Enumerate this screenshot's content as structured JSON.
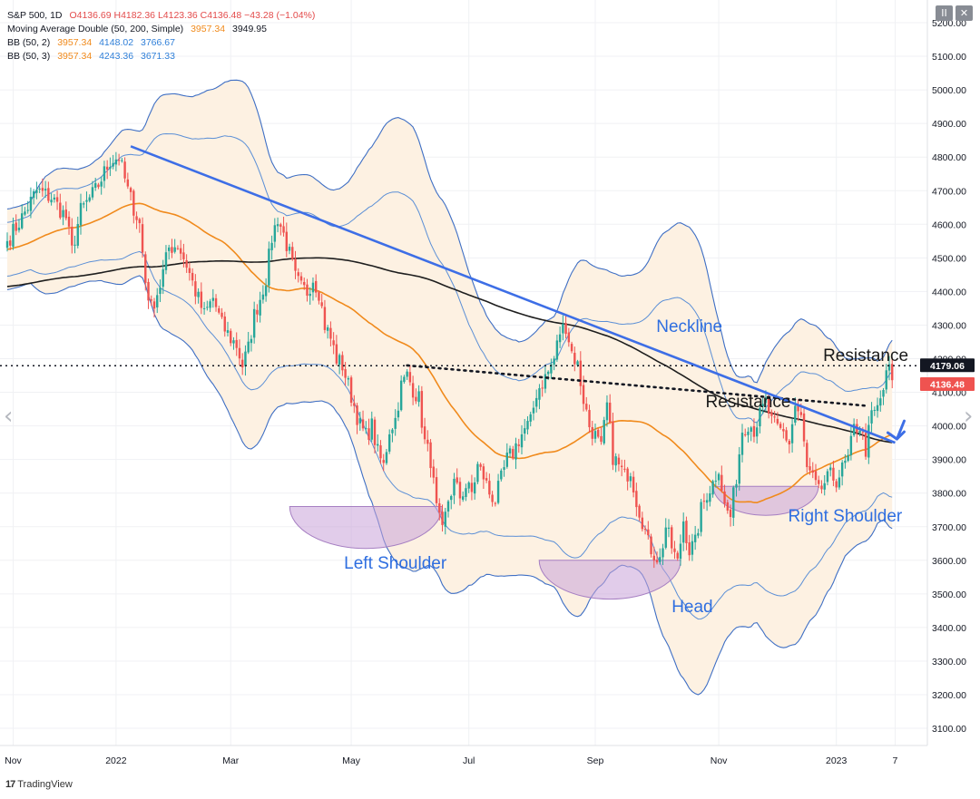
{
  "legend": {
    "line1": {
      "name": "S&P 500, 1D",
      "o": "O4136.69",
      "h": "H4182.36",
      "l": "L4123.36",
      "c": "C4136.48",
      "chg": "−43.28 (−1.04%)"
    },
    "line2": {
      "name": "Moving Average Double (50, 200, Simple)",
      "v1": "3957.34",
      "v2": "3949.95"
    },
    "line3": {
      "name": "BB (50, 2)",
      "v1": "3957.34",
      "v2": "4148.02",
      "v3": "3766.67"
    },
    "line4": {
      "name": "BB (50, 3)",
      "v1": "3957.34",
      "v2": "4243.36",
      "v3": "3671.33"
    }
  },
  "window_buttons": {
    "pause": "II",
    "close": "✕"
  },
  "footer": {
    "logo": "17",
    "brand": "TradingView"
  },
  "nav": {
    "left": "‹",
    "right": "›"
  },
  "colors": {
    "up": "#26a69a",
    "down": "#ef5350",
    "ma50": "#f08a1c",
    "ma200": "#1e1e1e",
    "bb_line": "#5b8fd6",
    "bb_outer": "#3f6fc4",
    "bb_fill": "#fdf1e2",
    "trend": "#3d6ee6",
    "shoulder": "#c9a3d8",
    "annot": "#2e6ee0"
  },
  "chart_data": {
    "type": "candlestick",
    "title": "S&P 500, 1D",
    "yticks": [
      3100,
      3200,
      3300,
      3400,
      3500,
      3600,
      3700,
      3800,
      3900,
      4000,
      4100,
      4200,
      4300,
      4400,
      4500,
      4600,
      4700,
      4800,
      4900,
      5000,
      5100,
      5200
    ],
    "ytick_labels": [
      "3100.00",
      "3200.00",
      "3300.00",
      "3400.00",
      "3500.00",
      "3600.00",
      "3700.00",
      "3800.00",
      "3900.00",
      "4000.00",
      "4100.00",
      "4200.00",
      "4300.00",
      "4400.00",
      "4500.00",
      "4600.00",
      "4700.00",
      "4800.00",
      "4900.00",
      "5000.00",
      "5100.00",
      "5200.00"
    ],
    "xticks": [
      {
        "label": "Nov",
        "i": 2
      },
      {
        "label": "2022",
        "i": 37
      },
      {
        "label": "Mar",
        "i": 76
      },
      {
        "label": "May",
        "i": 117
      },
      {
        "label": "Jul",
        "i": 157
      },
      {
        "label": "Sep",
        "i": 200
      },
      {
        "label": "Nov",
        "i": 242
      },
      {
        "label": "2023",
        "i": 282
      },
      {
        "label": "7",
        "i": 302
      }
    ],
    "price_tags": [
      {
        "value": "4179.06",
        "level": 4179.06,
        "bg": "#131722"
      },
      {
        "value": "4136.48",
        "level": 4136.48,
        "bg": "#ef5350"
      }
    ],
    "resistance_level": 4179.06,
    "anchors": [
      [
        0,
        4550
      ],
      [
        5,
        4620
      ],
      [
        10,
        4700
      ],
      [
        15,
        4680
      ],
      [
        20,
        4620
      ],
      [
        22,
        4520
      ],
      [
        25,
        4640
      ],
      [
        30,
        4700
      ],
      [
        35,
        4790
      ],
      [
        38,
        4800
      ],
      [
        41,
        4700
      ],
      [
        45,
        4600
      ],
      [
        47,
        4430
      ],
      [
        49,
        4350
      ],
      [
        52,
        4420
      ],
      [
        55,
        4530
      ],
      [
        58,
        4540
      ],
      [
        61,
        4480
      ],
      [
        64,
        4400
      ],
      [
        67,
        4330
      ],
      [
        70,
        4380
      ],
      [
        73,
        4300
      ],
      [
        76,
        4260
      ],
      [
        78,
        4240
      ],
      [
        80,
        4180
      ],
      [
        82,
        4230
      ],
      [
        84,
        4330
      ],
      [
        86,
        4380
      ],
      [
        88,
        4440
      ],
      [
        90,
        4560
      ],
      [
        92,
        4620
      ],
      [
        94,
        4570
      ],
      [
        96,
        4510
      ],
      [
        98,
        4440
      ],
      [
        100,
        4410
      ],
      [
        102,
        4400
      ],
      [
        104,
        4440
      ],
      [
        106,
        4400
      ],
      [
        108,
        4300
      ],
      [
        110,
        4260
      ],
      [
        112,
        4200
      ],
      [
        114,
        4180
      ],
      [
        116,
        4120
      ],
      [
        118,
        4060
      ],
      [
        120,
        4000
      ],
      [
        122,
        3970
      ],
      [
        124,
        4000
      ],
      [
        126,
        3920
      ],
      [
        128,
        3880
      ],
      [
        130,
        3990
      ],
      [
        132,
        4020
      ],
      [
        134,
        4120
      ],
      [
        136,
        4150
      ],
      [
        138,
        4110
      ],
      [
        140,
        4080
      ],
      [
        142,
        3950
      ],
      [
        144,
        3900
      ],
      [
        146,
        3750
      ],
      [
        148,
        3680
      ],
      [
        150,
        3780
      ],
      [
        152,
        3830
      ],
      [
        154,
        3790
      ],
      [
        156,
        3820
      ],
      [
        158,
        3800
      ],
      [
        160,
        3880
      ],
      [
        162,
        3850
      ],
      [
        164,
        3800
      ],
      [
        166,
        3780
      ],
      [
        168,
        3840
      ],
      [
        170,
        3900
      ],
      [
        172,
        3920
      ],
      [
        174,
        3960
      ],
      [
        176,
        3990
      ],
      [
        178,
        4010
      ],
      [
        180,
        4100
      ],
      [
        182,
        4130
      ],
      [
        184,
        4160
      ],
      [
        186,
        4200
      ],
      [
        188,
        4280
      ],
      [
        190,
        4300
      ],
      [
        192,
        4220
      ],
      [
        194,
        4180
      ],
      [
        196,
        4080
      ],
      [
        198,
        4000
      ],
      [
        200,
        3970
      ],
      [
        202,
        3930
      ],
      [
        204,
        4060
      ],
      [
        206,
        3910
      ],
      [
        208,
        3880
      ],
      [
        210,
        3850
      ],
      [
        212,
        3870
      ],
      [
        214,
        3780
      ],
      [
        216,
        3720
      ],
      [
        218,
        3650
      ],
      [
        220,
        3620
      ],
      [
        222,
        3600
      ],
      [
        224,
        3700
      ],
      [
        226,
        3640
      ],
      [
        228,
        3590
      ],
      [
        230,
        3720
      ],
      [
        232,
        3630
      ],
      [
        234,
        3650
      ],
      [
        236,
        3750
      ],
      [
        238,
        3800
      ],
      [
        240,
        3830
      ],
      [
        242,
        3880
      ],
      [
        244,
        3760
      ],
      [
        246,
        3730
      ],
      [
        248,
        3850
      ],
      [
        250,
        3990
      ],
      [
        252,
        4010
      ],
      [
        254,
        3990
      ],
      [
        256,
        4030
      ],
      [
        258,
        4070
      ],
      [
        260,
        4010
      ],
      [
        262,
        3990
      ],
      [
        264,
        3980
      ],
      [
        266,
        3950
      ],
      [
        268,
        4060
      ],
      [
        270,
        4020
      ],
      [
        272,
        3870
      ],
      [
        274,
        3840
      ],
      [
        276,
        3800
      ],
      [
        278,
        3830
      ],
      [
        280,
        3850
      ],
      [
        282,
        3840
      ],
      [
        284,
        3870
      ],
      [
        286,
        3900
      ],
      [
        288,
        3990
      ],
      [
        290,
        4000
      ],
      [
        292,
        3930
      ],
      [
        294,
        4030
      ],
      [
        296,
        4050
      ],
      [
        298,
        4110
      ],
      [
        300,
        4180
      ],
      [
        301,
        4136
      ]
    ],
    "annotations": [
      {
        "text": "Neckline",
        "i": 232,
        "price": 4280
      },
      {
        "text": "Resistance",
        "i": 252,
        "price": 4055
      },
      {
        "text": "Resistance",
        "i": 292,
        "price": 4193
      },
      {
        "text": "Left Shoulder",
        "i": 132,
        "price": 3575
      },
      {
        "text": "Head",
        "i": 233,
        "price": 3445
      },
      {
        "text": "Right Shoulder",
        "i": 285,
        "price": 3715
      }
    ]
  }
}
